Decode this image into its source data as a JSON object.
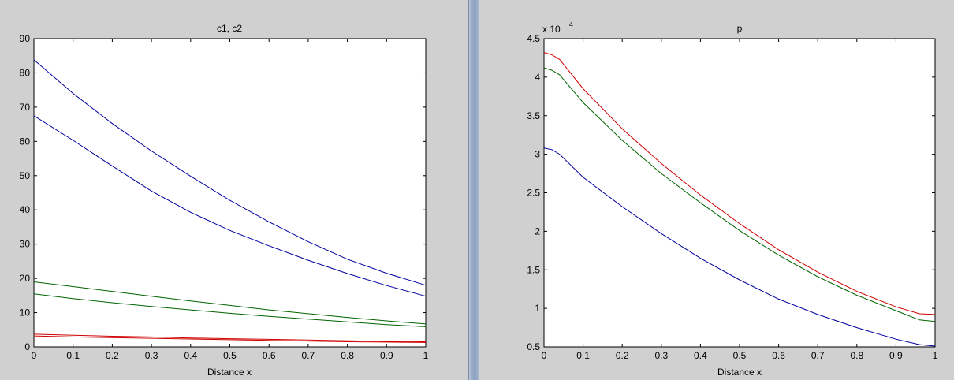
{
  "chart_data": [
    {
      "type": "line",
      "title": "c1, c2",
      "xlabel": "Distance x",
      "ylabel": "",
      "xlim": [
        0,
        1
      ],
      "ylim": [
        0,
        90
      ],
      "xticks": [
        "0",
        "0.1",
        "0.2",
        "0.3",
        "0.4",
        "0.5",
        "0.6",
        "0.7",
        "0.8",
        "0.9",
        "1"
      ],
      "yticks": [
        "0",
        "10",
        "20",
        "30",
        "40",
        "50",
        "60",
        "70",
        "80",
        "90"
      ],
      "grid": false,
      "x": [
        0,
        0.1,
        0.2,
        0.3,
        0.4,
        0.5,
        0.6,
        0.7,
        0.8,
        0.9,
        1.0
      ],
      "series": [
        {
          "color": "#0000a0",
          "values": [
            83.8,
            74.0,
            65.2,
            57.2,
            49.8,
            42.8,
            36.5,
            30.7,
            25.6,
            21.5,
            18.0
          ]
        },
        {
          "color": "#0000a0",
          "values": [
            67.5,
            60.3,
            52.8,
            45.5,
            39.3,
            34.0,
            29.5,
            25.3,
            21.4,
            17.9,
            14.8
          ]
        },
        {
          "color": "#006400",
          "values": [
            19.0,
            17.6,
            16.2,
            14.8,
            13.4,
            12.1,
            10.8,
            9.7,
            8.6,
            7.6,
            6.7
          ]
        },
        {
          "color": "#006400",
          "values": [
            15.5,
            14.1,
            12.9,
            11.8,
            10.8,
            9.8,
            8.9,
            8.1,
            7.3,
            6.5,
            5.9
          ]
        },
        {
          "color": "#d00000",
          "values": [
            3.7,
            3.4,
            3.1,
            2.9,
            2.6,
            2.4,
            2.2,
            2.0,
            1.8,
            1.6,
            1.5
          ]
        },
        {
          "color": "#d00000",
          "values": [
            3.2,
            2.9,
            2.7,
            2.5,
            2.3,
            2.1,
            1.9,
            1.7,
            1.5,
            1.4,
            1.3
          ]
        }
      ]
    },
    {
      "type": "line",
      "title": "p",
      "xlabel": "Distance x",
      "ylabel": "",
      "exponent_label": "x 10",
      "exponent_power": "4",
      "xlim": [
        0,
        1
      ],
      "ylim": [
        0.5,
        4.5
      ],
      "xticks": [
        "0",
        "0.1",
        "0.2",
        "0.3",
        "0.4",
        "0.5",
        "0.6",
        "0.7",
        "0.8",
        "0.9",
        "1"
      ],
      "yticks": [
        "0.5",
        "1",
        "1.5",
        "2",
        "2.5",
        "3",
        "3.5",
        "4",
        "4.5"
      ],
      "grid": false,
      "x": [
        0,
        0.02,
        0.04,
        0.1,
        0.2,
        0.3,
        0.4,
        0.5,
        0.6,
        0.7,
        0.8,
        0.9,
        0.96,
        1.0
      ],
      "series": [
        {
          "color": "#d00000",
          "values": [
            4.32,
            4.29,
            4.23,
            3.85,
            3.33,
            2.88,
            2.47,
            2.1,
            1.76,
            1.47,
            1.22,
            1.02,
            0.93,
            0.92
          ]
        },
        {
          "color": "#006400",
          "values": [
            4.12,
            4.09,
            4.03,
            3.67,
            3.18,
            2.75,
            2.37,
            2.01,
            1.69,
            1.41,
            1.17,
            0.97,
            0.85,
            0.83
          ]
        },
        {
          "color": "#0000a0",
          "values": [
            3.08,
            3.06,
            3.0,
            2.7,
            2.32,
            1.97,
            1.65,
            1.37,
            1.12,
            0.92,
            0.75,
            0.6,
            0.53,
            0.51
          ]
        }
      ]
    }
  ]
}
